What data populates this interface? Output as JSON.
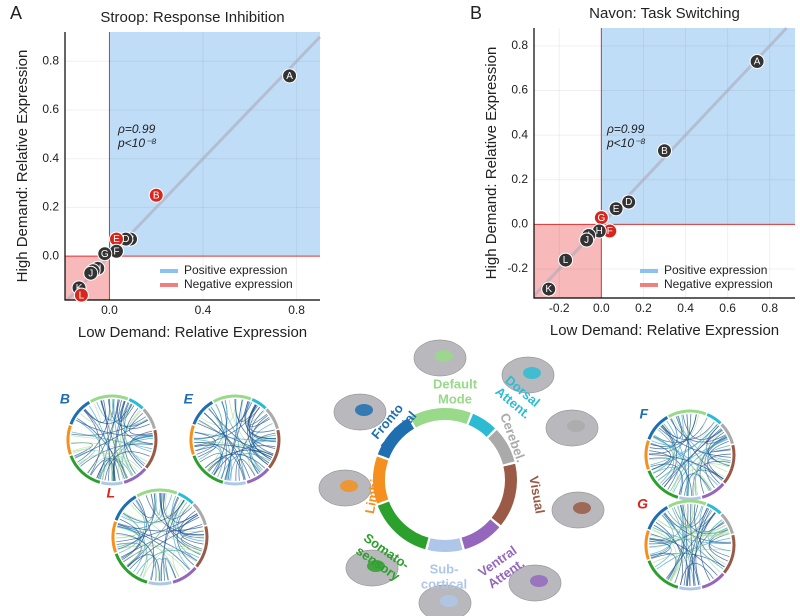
{
  "panels": [
    "A",
    "B"
  ],
  "chart_data": [
    {
      "type": "scatter",
      "title": "Stroop: Response Inhibition",
      "xlabel": "Low Demand: Relative Expression",
      "ylabel": "High Demand: Relative Expression",
      "x": [
        0.77,
        0.2,
        0.09,
        0.07,
        0.03,
        0.03,
        -0.02,
        -0.05,
        -0.07,
        -0.08,
        -0.13,
        -0.12
      ],
      "values": [
        0.74,
        0.25,
        0.07,
        0.07,
        0.07,
        0.02,
        0.01,
        -0.05,
        -0.06,
        -0.07,
        -0.13,
        -0.16
      ],
      "point_labels": [
        "A",
        "B",
        "C",
        "D",
        "E",
        "F",
        "G",
        "H",
        "I",
        "J",
        "K",
        "L"
      ],
      "point_colors": [
        "#333333",
        "#d7261e",
        "#333333",
        "#333333",
        "#d7261e",
        "#333333",
        "#333333",
        "#333333",
        "#333333",
        "#333333",
        "#333333",
        "#d7261e"
      ],
      "xlim": [
        -0.19,
        0.9
      ],
      "ylim": [
        -0.18,
        0.92
      ],
      "xticks": [
        {
          "value": 0,
          "label": "0.0"
        },
        0.4,
        0.8
      ],
      "yticks": [
        {
          "value": 0,
          "label": "0.0"
        },
        0.2,
        0.4,
        0.6,
        0.8
      ],
      "annotations": [
        "ρ=0.99",
        "p<10⁻⁸"
      ],
      "legend": [
        {
          "label": "Positive expression",
          "color": "#8cc1f0"
        },
        {
          "label": "Negative expression",
          "color": "#f08080"
        }
      ]
    },
    {
      "type": "scatter",
      "title": "Navon: Task Switching",
      "xlabel": "Low Demand: Relative Expression",
      "ylabel": "High Demand: Relative Expression",
      "x": [
        0.74,
        0.3,
        0.13,
        0.07,
        0.0,
        0.04,
        -0.01,
        -0.06,
        -0.07,
        -0.17,
        -0.25
      ],
      "values": [
        0.73,
        0.33,
        0.1,
        0.07,
        0.03,
        -0.03,
        -0.03,
        -0.05,
        -0.07,
        -0.16,
        -0.29
      ],
      "point_labels": [
        "A",
        "B",
        "D",
        "E",
        "G",
        "F",
        "H",
        "I",
        "J",
        "L",
        "K"
      ],
      "point_colors": [
        "#333333",
        "#333333",
        "#333333",
        "#333333",
        "#d7261e",
        "#d7261e",
        "#333333",
        "#333333",
        "#333333",
        "#333333",
        "#333333"
      ],
      "xlim": [
        -0.32,
        0.92
      ],
      "ylim": [
        -0.33,
        0.88
      ],
      "xticks": [
        -0.2,
        {
          "value": 0,
          "label": "0.0"
        },
        0.2,
        0.4,
        0.6,
        0.8
      ],
      "yticks": [
        -0.2,
        {
          "value": 0,
          "label": "0.0"
        },
        0.2,
        0.4,
        0.6,
        0.8
      ],
      "annotations": [
        "ρ=0.99",
        "p<10⁻⁸"
      ],
      "legend": [
        {
          "label": "Positive expression",
          "color": "#8cc1f0"
        },
        {
          "label": "Negative expression",
          "color": "#f08080"
        }
      ]
    }
  ],
  "networks": [
    {
      "lines": [
        "Default",
        "Mode"
      ],
      "color": "#98d98a"
    },
    {
      "lines": [
        "Dorsal",
        "Attent."
      ],
      "color": "#2bbcd4"
    },
    {
      "lines": [
        "Cerebel."
      ],
      "color": "#aaaaaa"
    },
    {
      "lines": [
        "Visual"
      ],
      "color": "#9a5a45"
    },
    {
      "lines": [
        "Ventral",
        "Attent."
      ],
      "color": "#9467bd"
    },
    {
      "lines": [
        "Sub-",
        "cortical"
      ],
      "color": "#aec7e8"
    },
    {
      "lines": [
        "Somato-",
        "sensory"
      ],
      "color": "#2ca02c"
    },
    {
      "lines": [
        "Limbic"
      ],
      "color": "#f5901e"
    },
    {
      "lines": [
        "Fronto",
        "Parietal"
      ],
      "color": "#1f6fb0"
    }
  ],
  "connectivity": [
    {
      "label": "B",
      "color": "#1f6fb0"
    },
    {
      "label": "E",
      "color": "#1f6fb0"
    },
    {
      "label": "L",
      "color": "#d7261e"
    },
    {
      "label": "F",
      "color": "#1f6fb0"
    },
    {
      "label": "G",
      "color": "#d7261e"
    }
  ]
}
